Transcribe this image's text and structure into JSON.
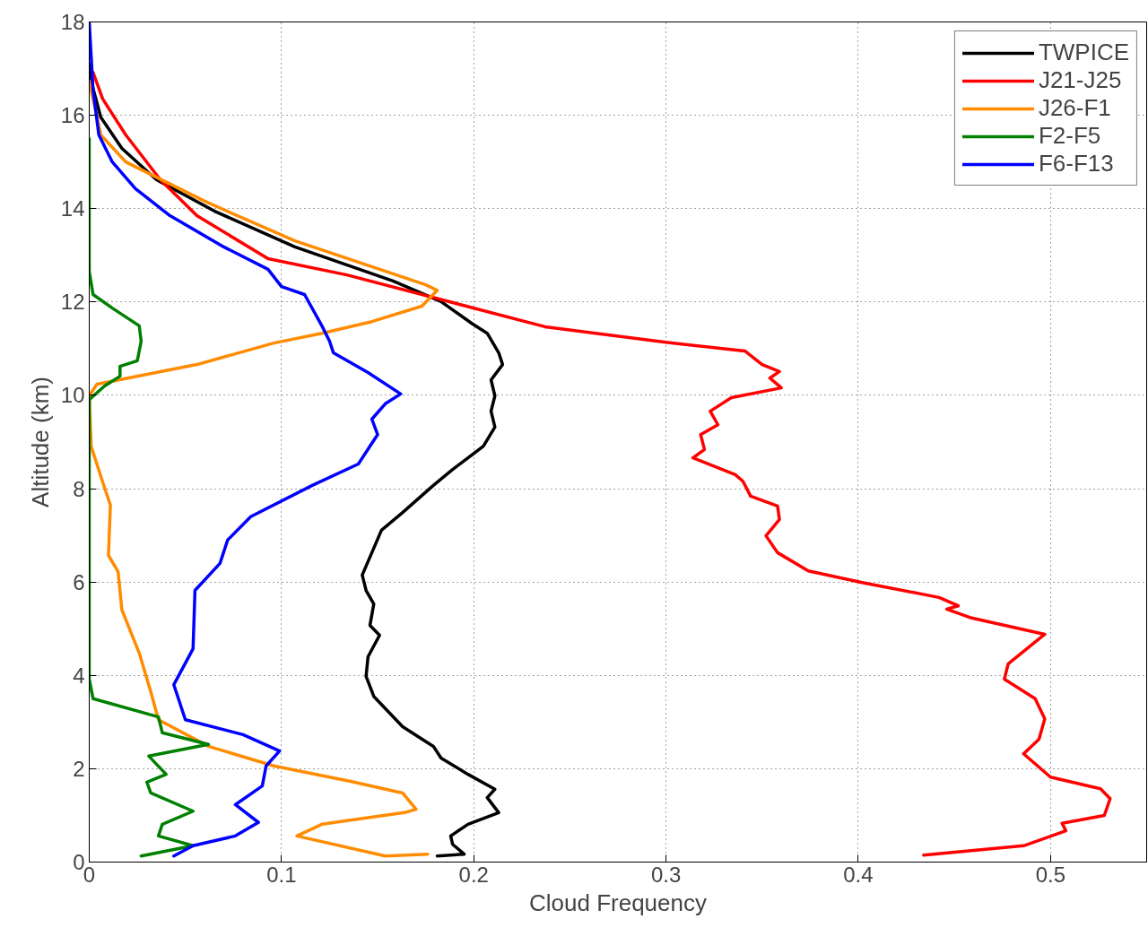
{
  "chart_data": {
    "type": "line",
    "xlabel": "Cloud Frequency",
    "ylabel": "Altitude (km)",
    "xlim": [
      0,
      0.55
    ],
    "ylim": [
      0,
      18
    ],
    "xticks": [
      0,
      0.1,
      0.2,
      0.3,
      0.4,
      0.5
    ],
    "yticks": [
      0,
      2,
      4,
      6,
      8,
      10,
      12,
      14,
      16,
      18
    ],
    "grid": true,
    "legend": "top right",
    "line_style": "solid",
    "marker": "none",
    "series": [
      {
        "name": "TWPICE",
        "color": "#000000",
        "x": [
          0.181,
          0.195,
          0.189,
          0.188,
          0.197,
          0.213,
          0.207,
          0.211,
          0.197,
          0.183,
          0.179,
          0.163,
          0.148,
          0.144,
          0.145,
          0.151,
          0.146,
          0.148,
          0.144,
          0.142,
          0.152,
          0.163,
          0.179,
          0.189,
          0.205,
          0.211,
          0.209,
          0.211,
          0.209,
          0.215,
          0.213,
          0.207,
          0.199,
          0.183,
          0.158,
          0.107,
          0.065,
          0.035,
          0.017,
          0.006,
          0.001,
          0
        ],
        "values": [
          0.13,
          0.17,
          0.38,
          0.56,
          0.81,
          1.06,
          1.38,
          1.56,
          1.88,
          2.23,
          2.48,
          2.9,
          3.55,
          3.98,
          4.4,
          4.86,
          5.07,
          5.53,
          5.82,
          6.15,
          7.11,
          7.49,
          8.07,
          8.41,
          8.91,
          9.32,
          9.66,
          9.99,
          10.33,
          10.66,
          10.91,
          11.33,
          11.54,
          12.01,
          12.45,
          13.18,
          13.95,
          14.62,
          15.29,
          15.96,
          16.73,
          17.1
        ]
      },
      {
        "name": "J21-J25",
        "color": "#ff0000",
        "x": [
          0.434,
          0.486,
          0.508,
          0.506,
          0.528,
          0.531,
          0.526,
          0.5,
          0.486,
          0.494,
          0.497,
          0.492,
          0.476,
          0.478,
          0.497,
          0.458,
          0.446,
          0.452,
          0.442,
          0.402,
          0.374,
          0.358,
          0.352,
          0.359,
          0.358,
          0.344,
          0.34,
          0.336,
          0.314,
          0.32,
          0.318,
          0.327,
          0.323,
          0.334,
          0.36,
          0.354,
          0.359,
          0.35,
          0.341,
          0.299,
          0.237,
          0.186,
          0.134,
          0.093,
          0.056,
          0.037,
          0.019,
          0.007,
          0.002
        ],
        "values": [
          0.15,
          0.35,
          0.67,
          0.83,
          1.0,
          1.36,
          1.57,
          1.82,
          2.32,
          2.63,
          3.07,
          3.5,
          3.92,
          4.25,
          4.88,
          5.24,
          5.42,
          5.49,
          5.67,
          5.99,
          6.24,
          6.63,
          6.99,
          7.34,
          7.63,
          7.84,
          8.16,
          8.3,
          8.66,
          8.84,
          9.16,
          9.37,
          9.66,
          9.95,
          10.16,
          10.37,
          10.51,
          10.66,
          10.95,
          11.14,
          11.47,
          12.02,
          12.58,
          12.93,
          13.85,
          14.62,
          15.58,
          16.35,
          16.92
        ]
      },
      {
        "name": "J26-F1",
        "color": "#ff8c00",
        "x": [
          0.176,
          0.154,
          0.108,
          0.121,
          0.164,
          0.17,
          0.163,
          0.136,
          0.096,
          0.062,
          0.036,
          0.032,
          0.026,
          0.017,
          0.015,
          0.01,
          0.011,
          0.007,
          0.001,
          0.0,
          0.004,
          0.02,
          0.056,
          0.096,
          0.121,
          0.147,
          0.173,
          0.181,
          0.175,
          0.107,
          0.061,
          0.019,
          0.006,
          0.002,
          0
        ],
        "values": [
          0.17,
          0.13,
          0.56,
          0.81,
          1.06,
          1.13,
          1.48,
          1.73,
          2.06,
          2.48,
          3.05,
          3.65,
          4.48,
          5.4,
          6.22,
          6.57,
          7.65,
          8.14,
          8.91,
          9.99,
          10.24,
          10.37,
          10.66,
          11.12,
          11.33,
          11.58,
          11.91,
          12.25,
          12.37,
          13.31,
          14.14,
          15.0,
          15.58,
          16.35,
          16.73
        ]
      },
      {
        "name": "F2-F5",
        "color": "#008000",
        "x": [
          0.027,
          0.054,
          0.036,
          0.038,
          0.054,
          0.032,
          0.03,
          0.04,
          0.031,
          0.062,
          0.038,
          0.036,
          0.002,
          0,
          0,
          0.008,
          0.016,
          0.016,
          0.025,
          0.027,
          0.026,
          0.012,
          0.002,
          0,
          0
        ],
        "values": [
          0.13,
          0.35,
          0.56,
          0.81,
          1.09,
          1.48,
          1.71,
          1.88,
          2.27,
          2.52,
          2.77,
          3.11,
          3.5,
          3.92,
          9.91,
          10.2,
          10.41,
          10.62,
          10.74,
          11.16,
          11.49,
          11.87,
          12.16,
          12.66,
          15.5
        ]
      },
      {
        "name": "F6-F13",
        "color": "#0000ff",
        "x": [
          0.044,
          0.054,
          0.076,
          0.088,
          0.076,
          0.09,
          0.092,
          0.099,
          0.08,
          0.05,
          0.044,
          0.054,
          0.055,
          0.068,
          0.072,
          0.084,
          0.116,
          0.14,
          0.146,
          0.15,
          0.147,
          0.154,
          0.162,
          0.145,
          0.127,
          0.125,
          0.121,
          0.112,
          0.1,
          0.093,
          0.07,
          0.042,
          0.024,
          0.012,
          0.005,
          0.002,
          0
        ],
        "values": [
          0.13,
          0.35,
          0.56,
          0.85,
          1.23,
          1.63,
          2.06,
          2.38,
          2.73,
          3.05,
          3.8,
          4.57,
          5.82,
          6.4,
          6.9,
          7.4,
          8.07,
          8.53,
          8.91,
          9.16,
          9.49,
          9.82,
          10.03,
          10.49,
          10.91,
          11.16,
          11.49,
          12.16,
          12.33,
          12.7,
          13.18,
          13.85,
          14.43,
          15.0,
          15.58,
          16.54,
          18
        ]
      }
    ]
  }
}
